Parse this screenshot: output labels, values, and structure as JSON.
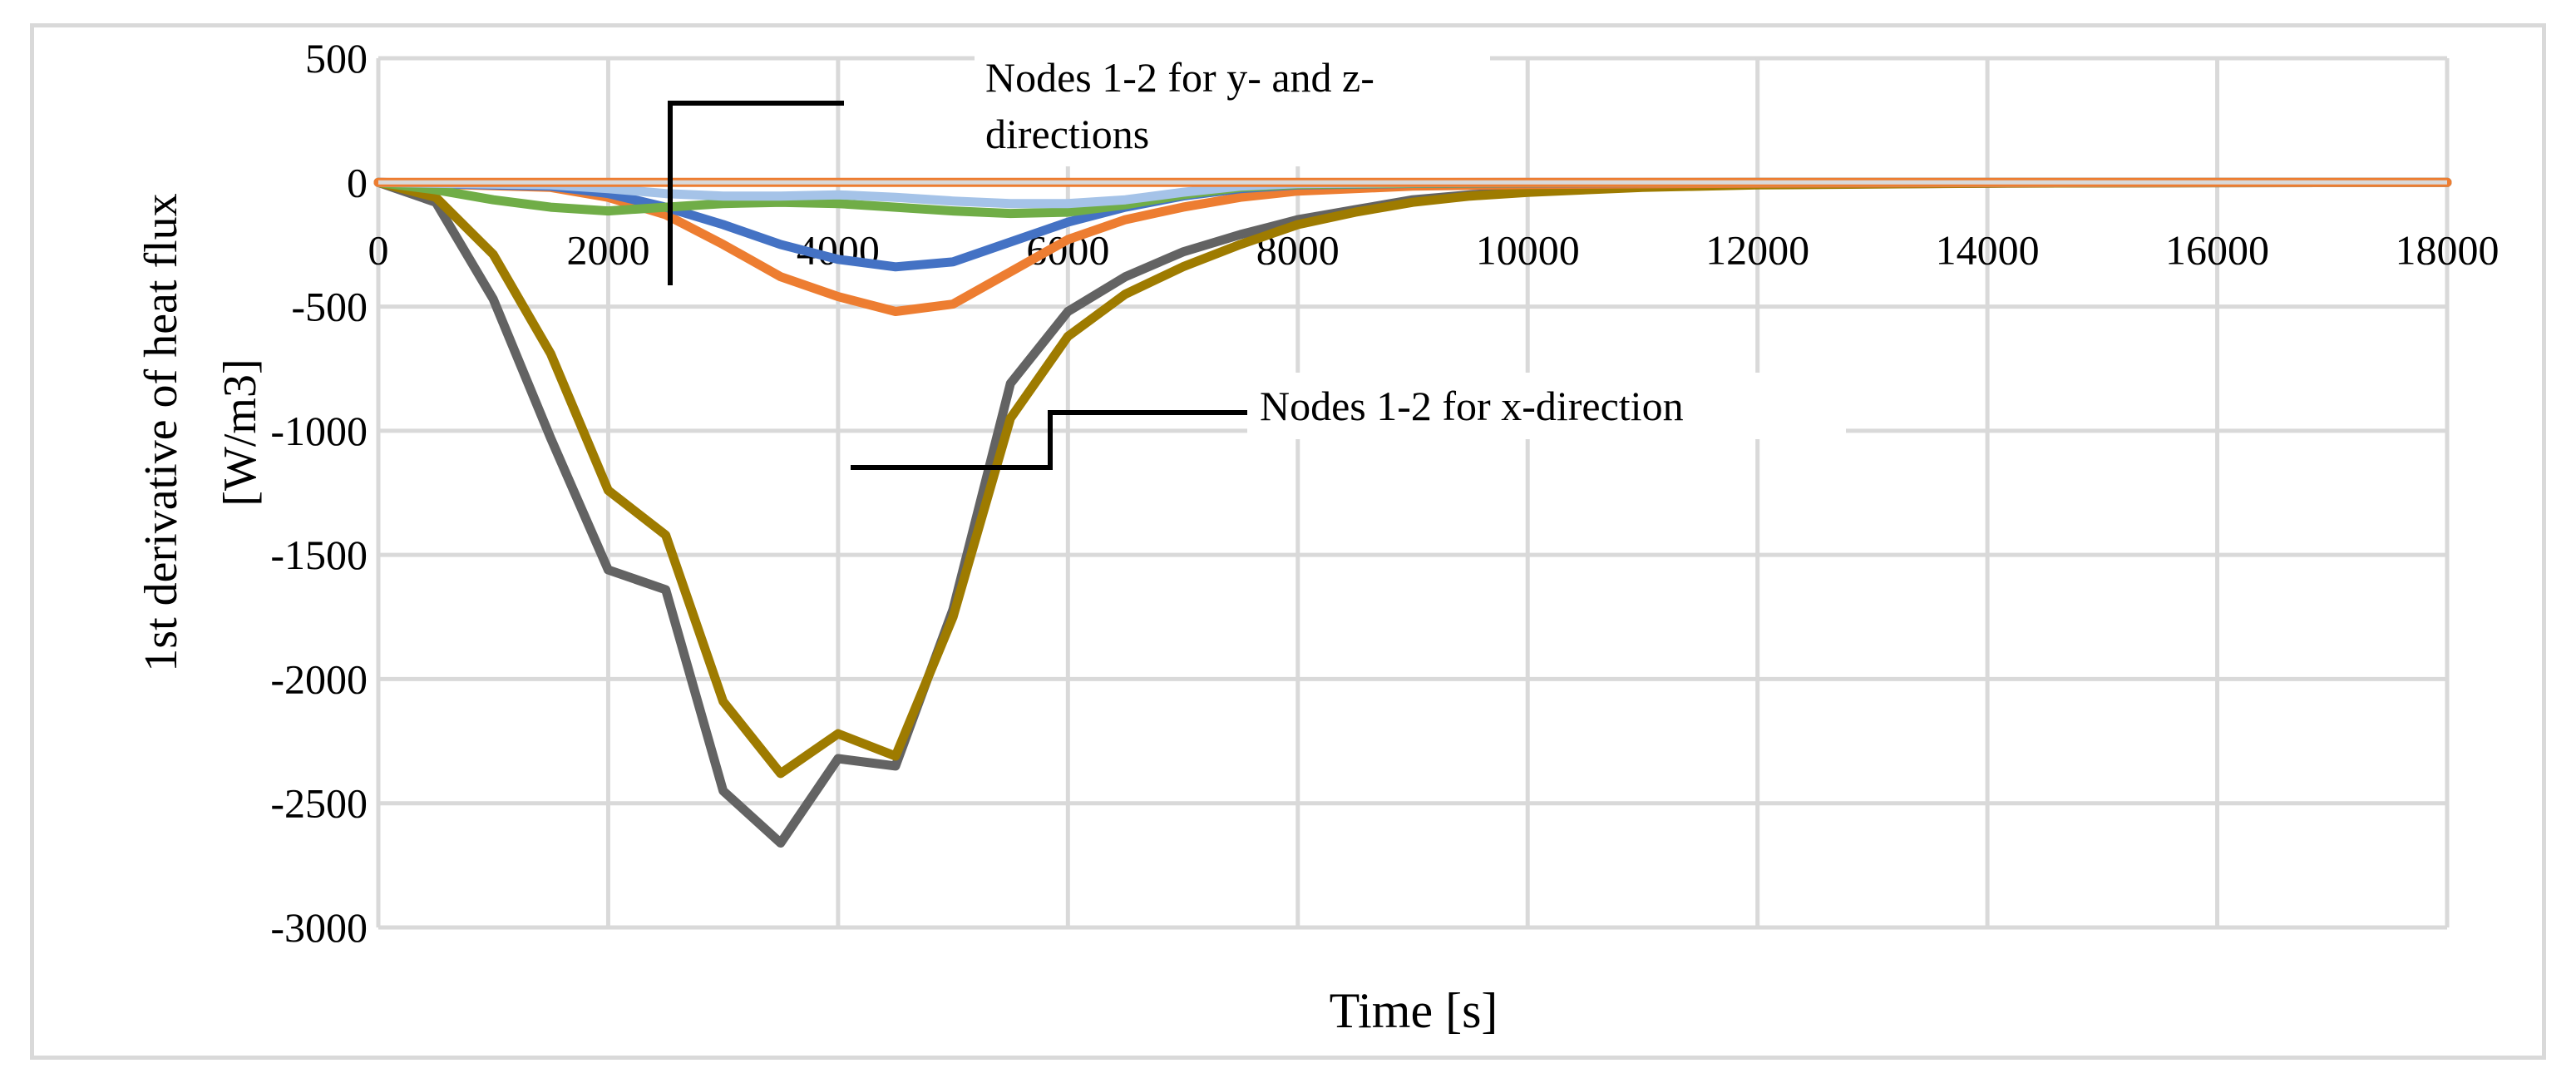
{
  "chart_data": {
    "type": "line",
    "title": "",
    "xlabel": "Time [s]",
    "ylabel_line1": "1st derivative  of  heat flux",
    "ylabel_line2": "[W/m3]",
    "xlim": [
      0,
      18000
    ],
    "ylim": [
      -3000,
      500
    ],
    "xticks": [
      0,
      2000,
      4000,
      6000,
      8000,
      10000,
      12000,
      14000,
      16000,
      18000
    ],
    "yticks": [
      500,
      0,
      -500,
      -1000,
      -1500,
      -2000,
      -2500,
      -3000
    ],
    "grid": true,
    "legend": "none",
    "annotations": [
      {
        "id": "yz",
        "text_line1": "Nodes 1-2 for y- and z-",
        "text_line2": "directions"
      },
      {
        "id": "x",
        "text": "Nodes 1-2 for x-direction"
      }
    ],
    "series": [
      {
        "color": "#636363",
        "x": [
          0,
          500,
          1000,
          1500,
          2000,
          2500,
          3000,
          3500,
          4000,
          4500,
          5000,
          5500,
          6000,
          6500,
          7000,
          7500,
          8000,
          8500,
          9000,
          9500,
          10000,
          11000,
          12000,
          14000,
          16000,
          18000
        ],
        "y": [
          0,
          -80,
          -470,
          -1030,
          -1560,
          -1640,
          -2450,
          -2660,
          -2320,
          -2350,
          -1720,
          -810,
          -520,
          -380,
          -280,
          -210,
          -150,
          -110,
          -70,
          -50,
          -35,
          -15,
          -8,
          -3,
          -1,
          0
        ]
      },
      {
        "color": "#9e7b00",
        "x": [
          0,
          500,
          1000,
          1500,
          2000,
          2500,
          3000,
          3500,
          4000,
          4500,
          5000,
          5500,
          6000,
          6500,
          7000,
          7500,
          8000,
          8500,
          9000,
          9500,
          10000,
          11000,
          12000,
          14000,
          16000,
          18000
        ],
        "y": [
          0,
          -60,
          -290,
          -690,
          -1240,
          -1420,
          -2090,
          -2380,
          -2220,
          -2310,
          -1750,
          -950,
          -620,
          -450,
          -340,
          -250,
          -170,
          -120,
          -80,
          -55,
          -40,
          -20,
          -10,
          -3,
          -1,
          0
        ]
      },
      {
        "color": "#ed7d31",
        "x": [
          0,
          1500,
          2000,
          2500,
          3000,
          3500,
          4000,
          4500,
          5000,
          5500,
          6000,
          6500,
          7000,
          7500,
          8000,
          9000,
          10000,
          12000,
          14000,
          16000,
          18000
        ],
        "y": [
          0,
          -20,
          -60,
          -130,
          -250,
          -380,
          -460,
          -520,
          -490,
          -360,
          -230,
          -150,
          -100,
          -60,
          -35,
          -15,
          -8,
          -3,
          -1,
          0,
          0
        ]
      },
      {
        "color": "#4472c4",
        "x": [
          0,
          1500,
          2000,
          2500,
          3000,
          3500,
          4000,
          4500,
          5000,
          5500,
          6000,
          6500,
          7000,
          7500,
          8000,
          9000,
          10000,
          12000,
          14000,
          18000
        ],
        "y": [
          0,
          -15,
          -45,
          -100,
          -170,
          -250,
          -310,
          -340,
          -320,
          -240,
          -160,
          -100,
          -55,
          -25,
          -10,
          -4,
          -2,
          0,
          0,
          0
        ]
      },
      {
        "color": "#70ad47",
        "x": [
          0,
          500,
          1000,
          1500,
          2000,
          2500,
          3000,
          3500,
          4000,
          4500,
          5000,
          5500,
          6000,
          6500,
          7000,
          7500,
          8000,
          9000,
          10000,
          12000,
          18000
        ],
        "y": [
          0,
          -30,
          -70,
          -100,
          -115,
          -100,
          -85,
          -80,
          -85,
          -100,
          -115,
          -125,
          -120,
          -90,
          -50,
          -20,
          -8,
          -3,
          -1,
          0,
          0
        ]
      },
      {
        "color": "#a5c3e8",
        "x": [
          0,
          1500,
          2000,
          2500,
          3000,
          3500,
          4000,
          4500,
          5000,
          5500,
          6000,
          6500,
          7000,
          7500,
          8000,
          9000,
          10000,
          18000
        ],
        "y": [
          0,
          -10,
          -25,
          -45,
          -55,
          -55,
          -50,
          -60,
          -75,
          -85,
          -85,
          -70,
          -40,
          -15,
          -5,
          -1,
          0,
          0
        ]
      },
      {
        "color": "#ed7d31",
        "x": [
          0,
          18000
        ],
        "y": [
          0,
          0
        ]
      }
    ]
  }
}
